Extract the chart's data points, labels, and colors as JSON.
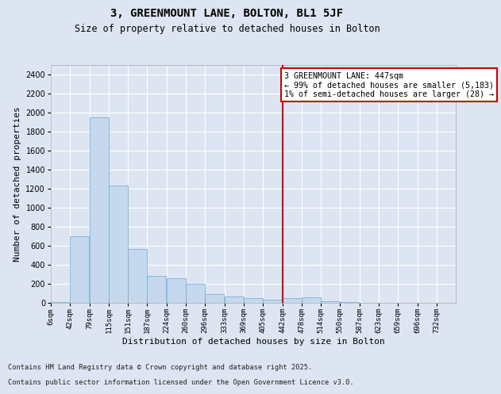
{
  "title": "3, GREENMOUNT LANE, BOLTON, BL1 5JF",
  "subtitle": "Size of property relative to detached houses in Bolton",
  "xlabel": "Distribution of detached houses by size in Bolton",
  "ylabel": "Number of detached properties",
  "bin_labels": [
    "6sqm",
    "42sqm",
    "79sqm",
    "115sqm",
    "151sqm",
    "187sqm",
    "224sqm",
    "260sqm",
    "296sqm",
    "333sqm",
    "369sqm",
    "405sqm",
    "442sqm",
    "478sqm",
    "514sqm",
    "550sqm",
    "587sqm",
    "623sqm",
    "659sqm",
    "696sqm",
    "732sqm"
  ],
  "bin_edges": [
    6,
    42,
    79,
    115,
    151,
    187,
    224,
    260,
    296,
    333,
    369,
    405,
    442,
    478,
    514,
    550,
    587,
    623,
    659,
    696,
    732
  ],
  "bar_heights": [
    10,
    700,
    1950,
    1230,
    570,
    280,
    260,
    200,
    90,
    65,
    50,
    35,
    50,
    55,
    20,
    5,
    3,
    2,
    2,
    2,
    0
  ],
  "bar_color": "#c5d8ee",
  "bar_edgecolor": "#6aaad4",
  "vline_x": 442,
  "vline_color": "#cc0000",
  "annotation_text": "3 GREENMOUNT LANE: 447sqm\n← 99% of detached houses are smaller (5,183)\n1% of semi-detached houses are larger (28) →",
  "annotation_box_facecolor": "white",
  "annotation_box_edgecolor": "#cc0000",
  "ylim_max": 2500,
  "yticks": [
    0,
    200,
    400,
    600,
    800,
    1000,
    1200,
    1400,
    1600,
    1800,
    2000,
    2200,
    2400
  ],
  "bg_color": "#dde5f2",
  "footnote1": "Contains HM Land Registry data © Crown copyright and database right 2025.",
  "footnote2": "Contains public sector information licensed under the Open Government Licence v3.0."
}
